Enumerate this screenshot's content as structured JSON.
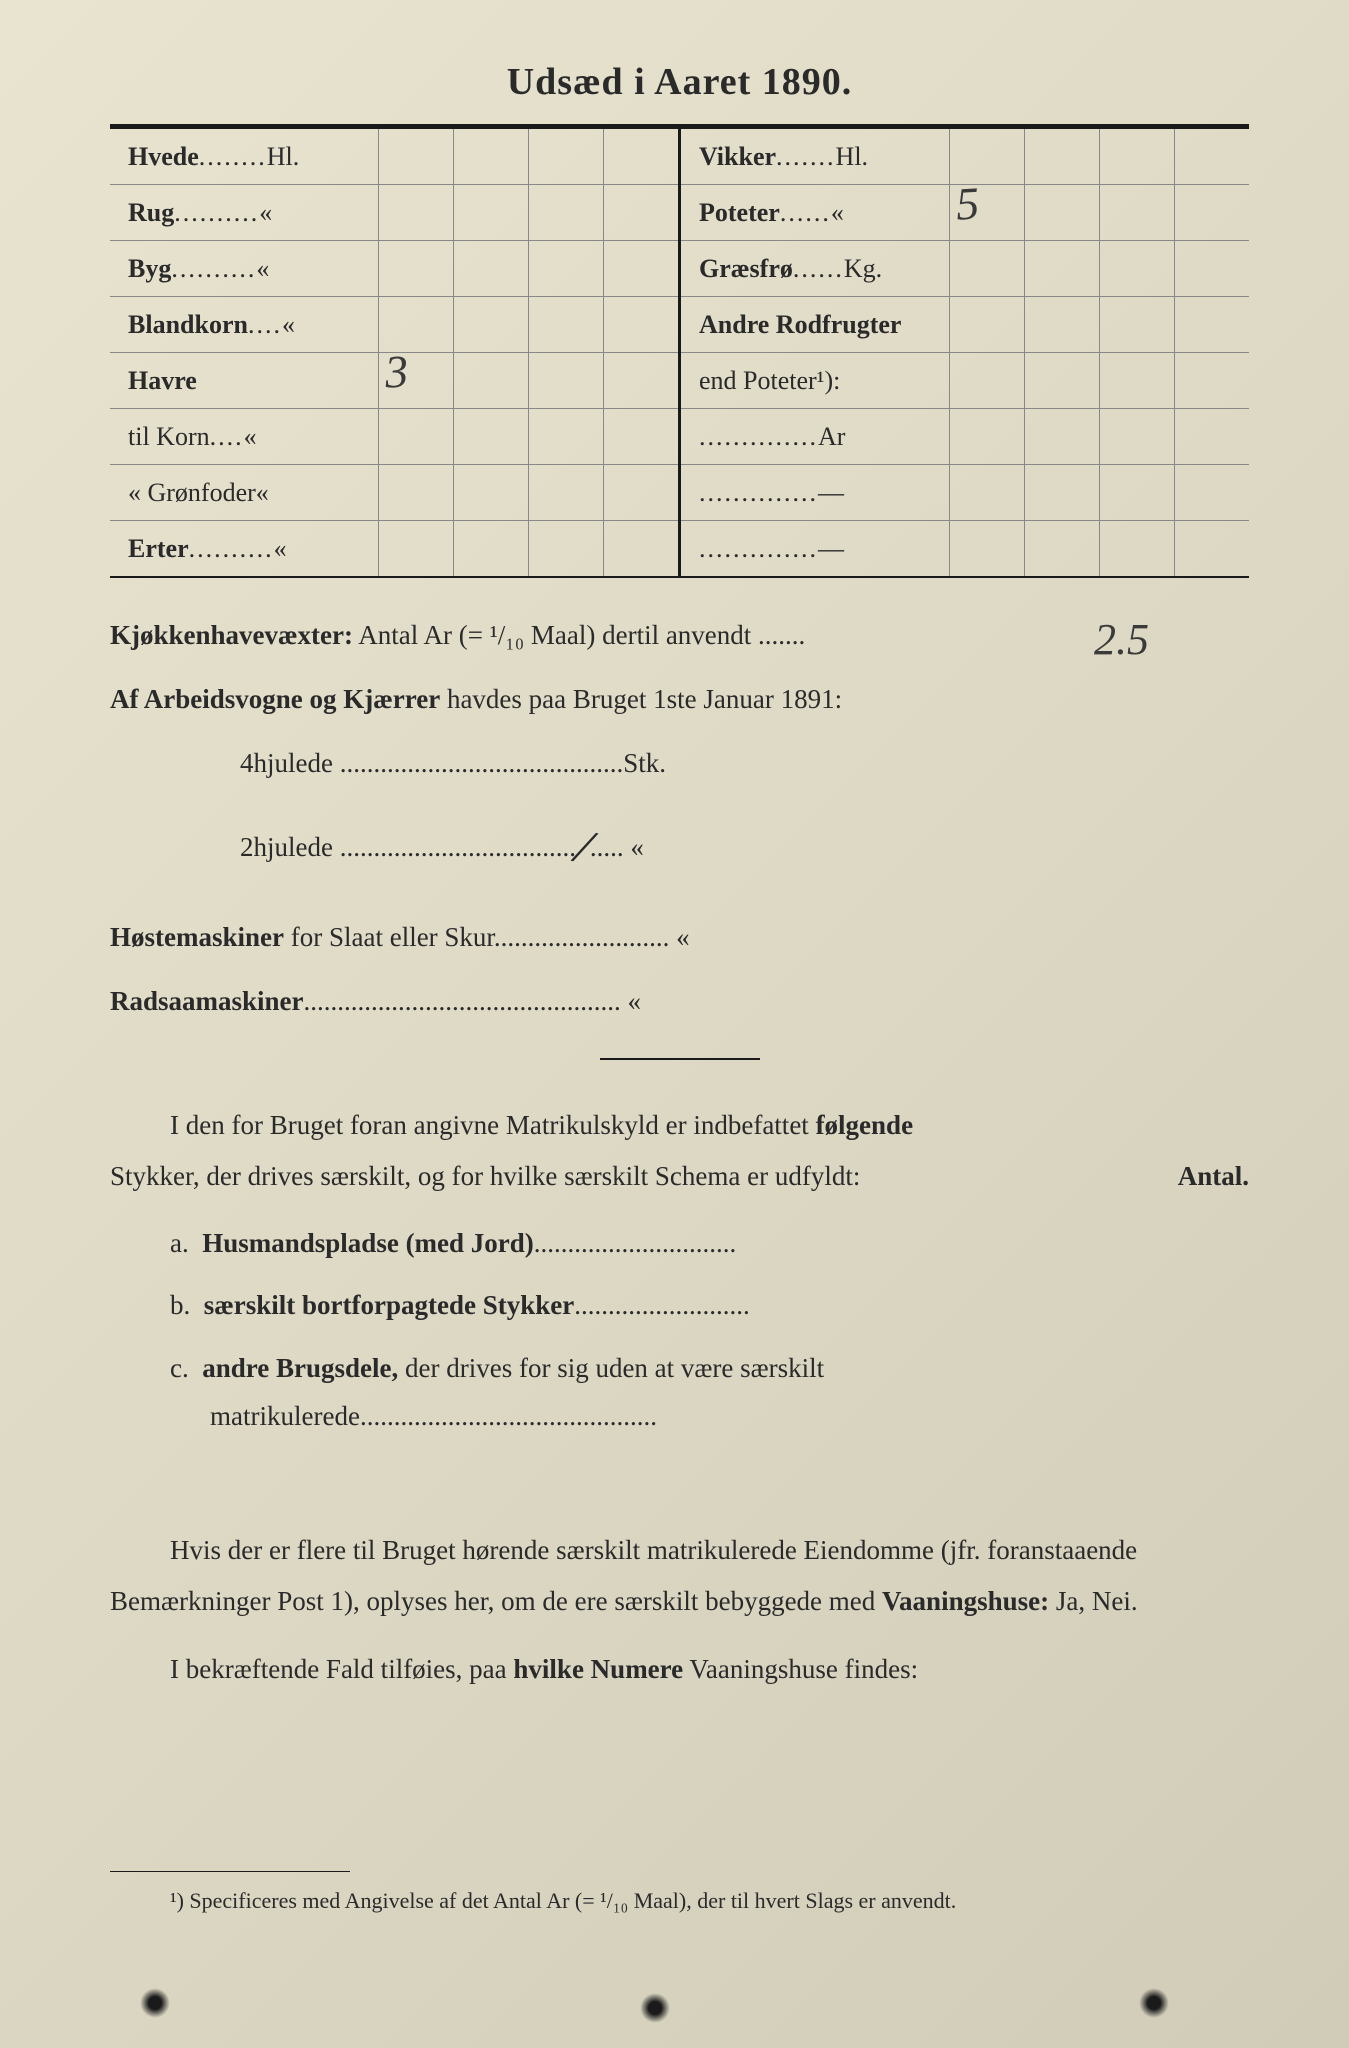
{
  "title": "Udsæd i Aaret 1890.",
  "crops_left": [
    {
      "label_bold": "Hvede",
      "dots": "........",
      "unit": "Hl.",
      "value": ""
    },
    {
      "label_bold": "Rug",
      "dots": "..........",
      "unit": "«",
      "value": ""
    },
    {
      "label_bold": "Byg",
      "dots": "..........",
      "unit": "«",
      "value": ""
    },
    {
      "label_bold": "Blandkorn",
      "dots": "....",
      "unit": "«",
      "value": ""
    },
    {
      "label_bold": "Havre",
      "dots": "",
      "unit": "",
      "value": "3"
    },
    {
      "label_bold": "",
      "prefix": "til Korn",
      "dots": "....",
      "unit": "«",
      "value": ""
    },
    {
      "label_bold": "",
      "prefix": "«  Grønfoder",
      "dots": "",
      "unit": "«",
      "value": ""
    },
    {
      "label_bold": "Erter",
      "dots": "..........",
      "unit": "«",
      "value": ""
    }
  ],
  "crops_right": [
    {
      "label_bold": "Vikker",
      "dots": ".......",
      "unit": "Hl.",
      "value": ""
    },
    {
      "label_bold": "Poteter",
      "dots": "......",
      "unit": "«",
      "value": "5"
    },
    {
      "label_bold": "Græsfrø",
      "dots": "......",
      "unit": "Kg.",
      "value": ""
    },
    {
      "label_bold": "Andre Rodfrugter",
      "dots": "",
      "unit": "",
      "value": ""
    },
    {
      "label_bold": "",
      "prefix": "end Poteter¹):",
      "dots": "",
      "unit": "",
      "value": ""
    },
    {
      "label_bold": "",
      "prefix": "",
      "dots": "..............",
      "unit": "Ar",
      "value": ""
    },
    {
      "label_bold": "",
      "prefix": "",
      "dots": "..............",
      "unit": "—",
      "value": ""
    },
    {
      "label_bold": "",
      "prefix": "",
      "dots": "..............",
      "unit": "—",
      "value": ""
    }
  ],
  "kjokken_label": "Kjøkkenhavevæxter:",
  "kjokken_text": " Antal Ar (= ¹/₁₀ Maal) dertil anvendt .......",
  "kjokken_value": "2.5",
  "arbeidsvogne_bold": "Af Arbeidsvogne og Kjærrer",
  "arbeidsvogne_text": " havdes paa Bruget 1ste Januar 1891:",
  "fourwheel": "4hjulede ..........................................Stk.",
  "twowheel_pre": "2hjulede ...................................",
  "twowheel_value": "/",
  "twowheel_post": "..... «",
  "hostemaskiner_bold": "Høstemaskiner",
  "hostemaskiner_text": " for Slaat eller Skur.......................... «",
  "radsaa_bold": "Radsaamaskiner",
  "radsaa_text": "............................................... «",
  "para1_pre": "I den for Bruget foran angivne Matrikulskyld er indbefattet ",
  "para1_bold": "følgende",
  "para1_line2": "Stykker, der drives særskilt, og for hvilke særskilt Schema er udfyldt:",
  "antal_label": "Antal.",
  "item_a_letter": "a.",
  "item_a_bold": "Husmandspladse (med Jord)",
  "item_a_dots": "..............................",
  "item_b_letter": "b.",
  "item_b_bold": "særskilt bortforpagtede Stykker",
  "item_b_dots": "..........................",
  "item_c_letter": "c.",
  "item_c_bold": "andre Brugsdele,",
  "item_c_text": " der drives for sig uden at være særskilt matrikulerede",
  "item_c_dots": "............................................",
  "para2": "Hvis der er flere til Bruget hørende særskilt matrikulerede Eiendomme (jfr. foranstaaende Bemærkninger Post 1), oplyses her, om de ere særskilt bebyggede med ",
  "para2_bold": "Vaaningshuse:",
  "para2_end": " Ja, Nei.",
  "para3_pre": "I bekræftende Fald tilføies, paa ",
  "para3_bold": "hvilke Numere",
  "para3_post": " Vaaningshuse findes:",
  "footnote": "¹) Specificeres med Angivelse af det Antal Ar (= ¹/₁₀ Maal), der til hvert Slags er anvendt."
}
